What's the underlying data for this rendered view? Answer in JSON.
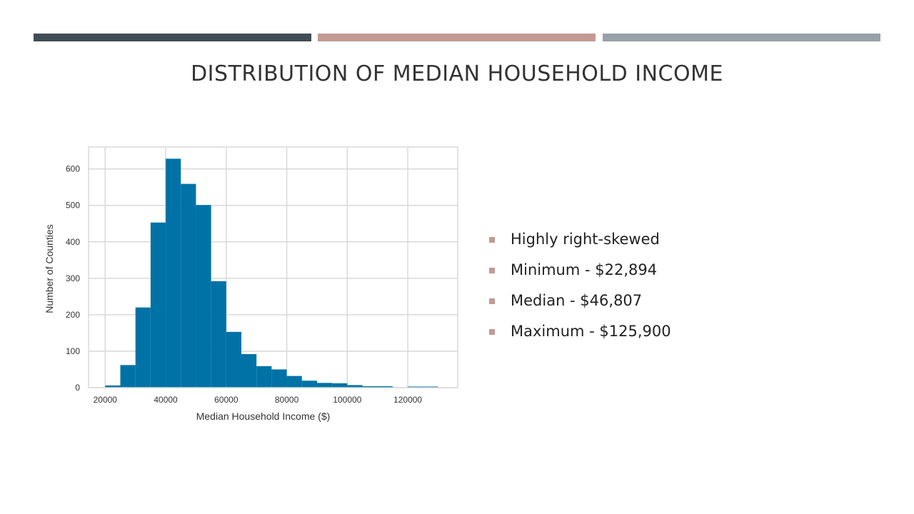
{
  "slide": {
    "title": "DISTRIBUTION OF MEDIAN HOUSEHOLD INCOME",
    "bullets": [
      "Highly right-skewed",
      "Minimum - $22,894",
      "Median - $46,807",
      "Maximum - $125,900"
    ]
  },
  "colors": {
    "bar_1": "#404d54",
    "bar_2": "#c29a93",
    "bar_3": "#98a0a8",
    "histogram": "#0072a6",
    "bullet_marker": "#c29a93",
    "grid": "#d9d9d9",
    "title_text": "#333333"
  },
  "chart_data": {
    "type": "bar",
    "xlabel": "Median Household Income ($)",
    "ylabel": "Number of Counties",
    "x_ticks": [
      20000,
      40000,
      60000,
      80000,
      100000,
      120000
    ],
    "y_ticks": [
      0,
      100,
      200,
      300,
      400,
      500,
      600
    ],
    "xlim": [
      14500,
      136500
    ],
    "ylim": [
      0,
      660
    ],
    "grid": true,
    "legend": "none",
    "bin_edges": [
      20000,
      25000,
      30000,
      35000,
      40000,
      45000,
      50000,
      55000,
      60000,
      65000,
      70000,
      75000,
      80000,
      85000,
      90000,
      95000,
      100000,
      105000,
      110000,
      115000,
      120000,
      125000,
      130000
    ],
    "counts": [
      6,
      62,
      220,
      453,
      628,
      559,
      501,
      292,
      153,
      92,
      59,
      50,
      32,
      19,
      13,
      12,
      7,
      4,
      4,
      1,
      3,
      3
    ]
  }
}
